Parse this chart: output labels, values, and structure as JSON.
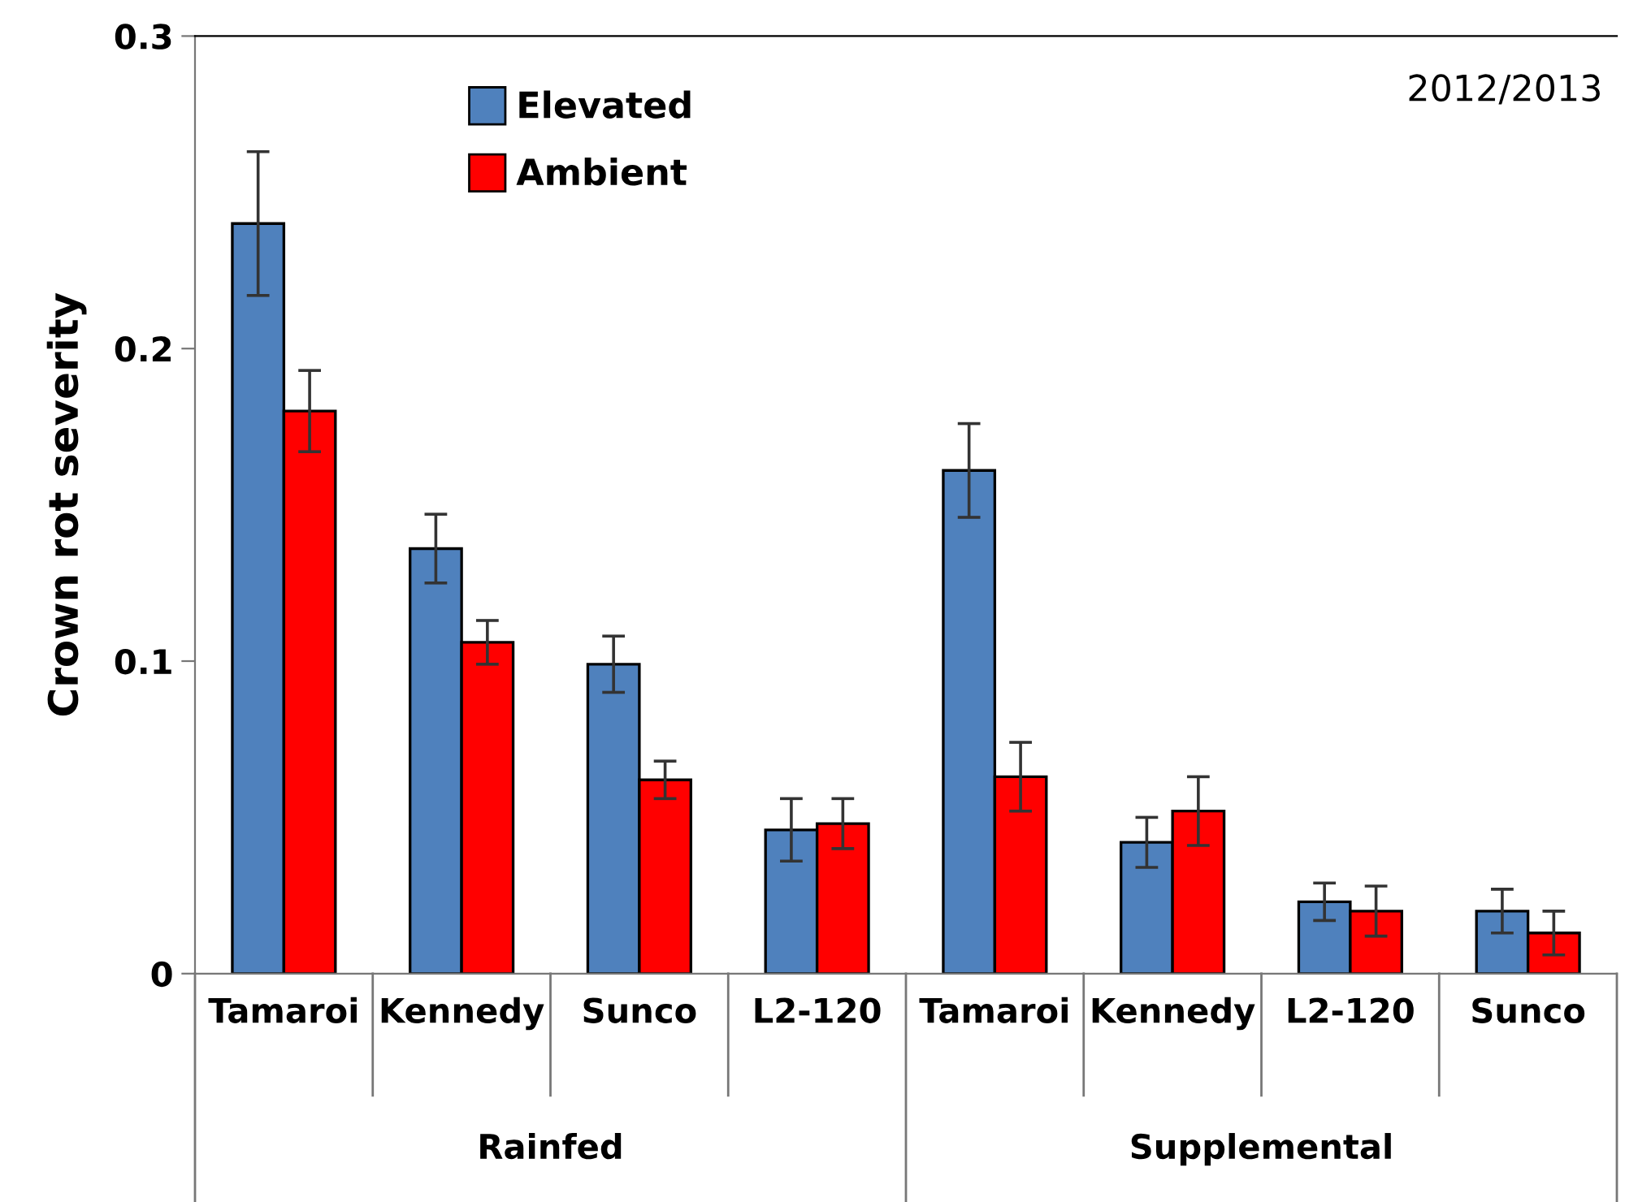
{
  "chart_data": {
    "type": "bar",
    "ylabel": "Crown rot severity",
    "categories": [
      "Tamaroi",
      "Kennedy",
      "Sunco",
      "L2-120",
      "Tamaroi",
      "Kennedy",
      "L2-120",
      "Sunco"
    ],
    "series": [
      {
        "name": "Elevated",
        "color": "#4f81bd",
        "values": [
          0.24,
          0.136,
          0.099,
          0.046,
          0.161,
          0.042,
          0.023,
          0.02
        ],
        "errors": [
          0.023,
          0.011,
          0.009,
          0.01,
          0.015,
          0.008,
          0.006,
          0.007
        ]
      },
      {
        "name": "Ambient",
        "color": "#ff0000",
        "values": [
          0.18,
          0.106,
          0.062,
          0.048,
          0.063,
          0.052,
          0.02,
          0.013
        ],
        "errors": [
          0.013,
          0.007,
          0.006,
          0.008,
          0.011,
          0.011,
          0.008,
          0.007
        ]
      }
    ],
    "ylim": [
      0,
      0.3
    ],
    "yticks": [
      0,
      0.1,
      0.2,
      0.3
    ],
    "grid": false,
    "legend": "top left",
    "annotations": [
      "2012/2013",
      "Rainfed",
      "Supplemental"
    ]
  }
}
